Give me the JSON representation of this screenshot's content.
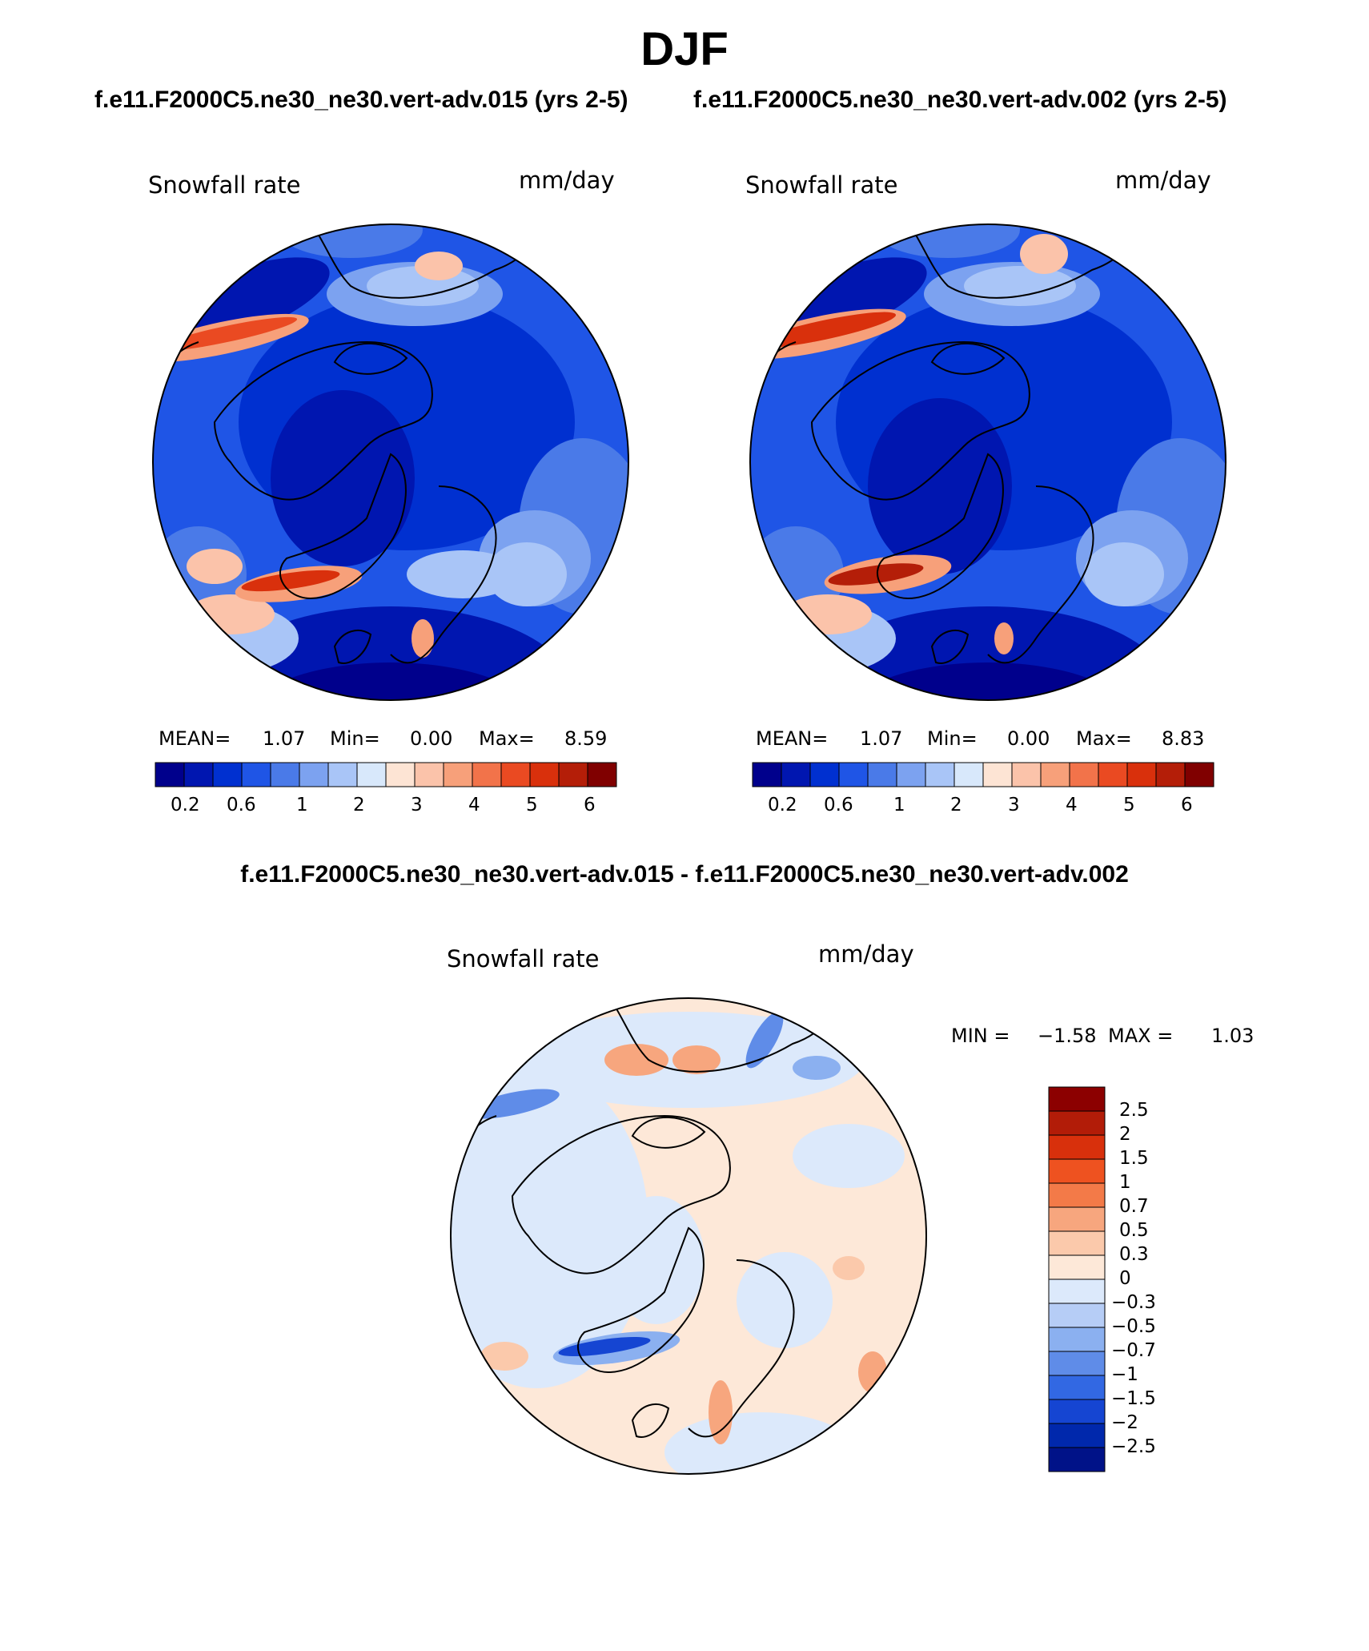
{
  "title": "DJF",
  "panels": [
    {
      "case_title": "f.e11.F2000C5.ne30_ne30.vert-adv.015 (yrs 2-5)",
      "variable": "Snowfall rate",
      "units": "mm/day",
      "stats": {
        "mean_label": "MEAN=",
        "mean": "1.07",
        "min_label": "Min=",
        "min": "0.00",
        "max_label": "Max=",
        "max": "8.59"
      }
    },
    {
      "case_title": "f.e11.F2000C5.ne30_ne30.vert-adv.002 (yrs 2-5)",
      "variable": "Snowfall rate",
      "units": "mm/day",
      "stats": {
        "mean_label": "MEAN=",
        "mean": "1.07",
        "min_label": "Min=",
        "min": "0.00",
        "max_label": "Max=",
        "max": "8.83"
      }
    }
  ],
  "colorbar_top": {
    "colors": [
      "#00008c",
      "#0016b0",
      "#0030d0",
      "#1f55e6",
      "#4a7ae8",
      "#7ca2f0",
      "#a9c5f7",
      "#d8e8fb",
      "#fde4d4",
      "#fbc3aa",
      "#f7a07a",
      "#f2734a",
      "#ea4a22",
      "#d9300c",
      "#b41e08",
      "#800000"
    ],
    "tick_labels": [
      "0.2",
      "0.6",
      "1",
      "2",
      "3",
      "4",
      "5",
      "6"
    ]
  },
  "difference": {
    "title": "f.e11.F2000C5.ne30_ne30.vert-adv.015 - f.e11.F2000C5.ne30_ne30.vert-adv.002",
    "variable": "Snowfall rate",
    "units": "mm/day",
    "min_label": "MIN =",
    "min": "−1.58",
    "max_label": "MAX =",
    "max": "1.03",
    "colorbar": {
      "colors": [
        "#8c0000",
        "#b21c08",
        "#d8300c",
        "#ee5220",
        "#f37a48",
        "#f7a67e",
        "#fbc9ab",
        "#fde8d8",
        "#dce9fb",
        "#b6cdf6",
        "#8bb0f0",
        "#5f8ce8",
        "#3268e3",
        "#1545d2",
        "#0028ac",
        "#001288"
      ],
      "tick_labels": [
        "2.5",
        "2",
        "1.5",
        "1",
        "0.7",
        "0.5",
        "0.3",
        "0",
        "−0.3",
        "−0.5",
        "−0.7",
        "−1",
        "−1.5",
        "−2",
        "−2.5"
      ]
    }
  }
}
